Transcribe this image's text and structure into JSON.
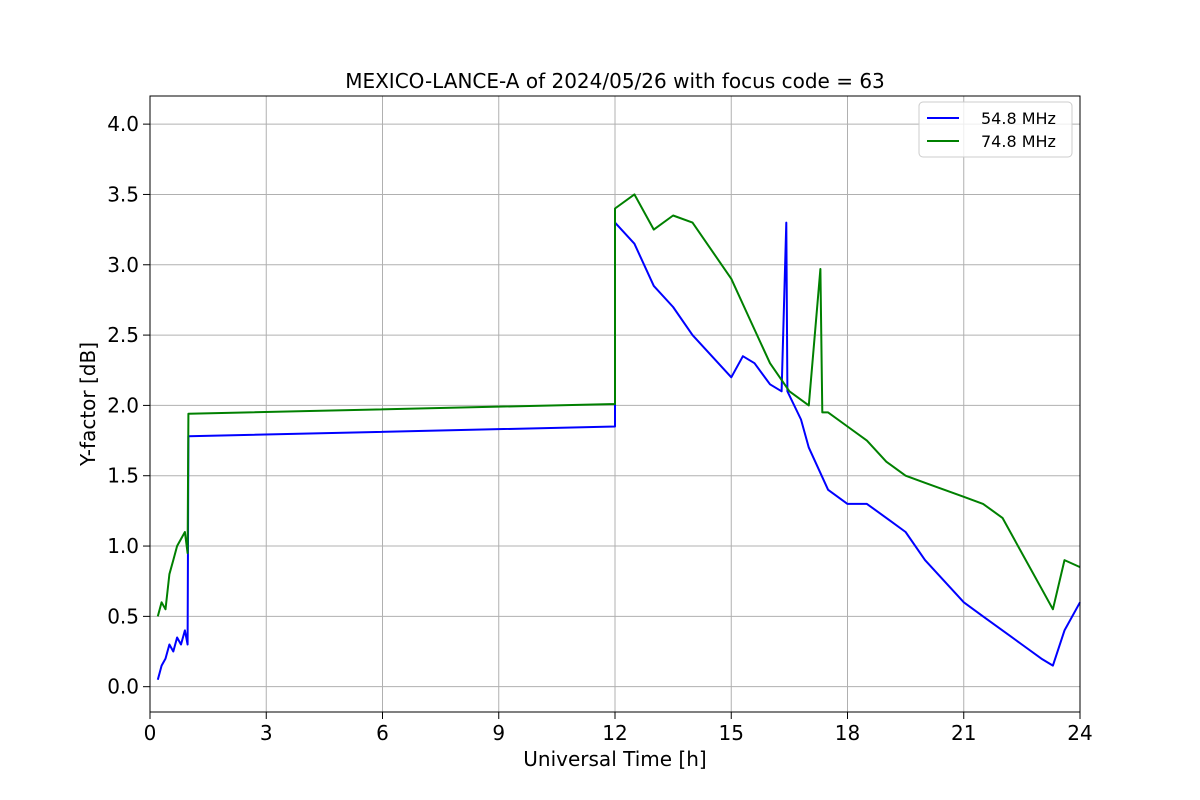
{
  "chart_data": {
    "type": "line",
    "title": "MEXICO-LANCE-A of 2024/05/26 with focus code = 63",
    "xlabel": "Universal Time [h]",
    "ylabel": "Y-factor [dB]",
    "xlim": [
      0,
      24
    ],
    "ylim": [
      -0.18,
      4.2
    ],
    "xticks": [
      0,
      3,
      6,
      9,
      12,
      15,
      18,
      21,
      24
    ],
    "xtick_labels": [
      "0",
      "3",
      "6",
      "9",
      "12",
      "15",
      "18",
      "21",
      "24"
    ],
    "yticks": [
      0.0,
      0.5,
      1.0,
      1.5,
      2.0,
      2.5,
      3.0,
      3.5,
      4.0
    ],
    "ytick_labels": [
      "0.0",
      "0.5",
      "1.0",
      "1.5",
      "2.0",
      "2.5",
      "3.0",
      "3.5",
      "4.0"
    ],
    "grid": true,
    "legend_position": "top-right",
    "series": [
      {
        "name": "54.8 MHz",
        "color": "#0000ff",
        "points": [
          [
            0.2,
            0.05
          ],
          [
            0.3,
            0.15
          ],
          [
            0.4,
            0.2
          ],
          [
            0.5,
            0.3
          ],
          [
            0.6,
            0.25
          ],
          [
            0.7,
            0.35
          ],
          [
            0.8,
            0.3
          ],
          [
            0.9,
            0.4
          ],
          [
            0.97,
            0.3
          ],
          [
            0.99,
            1.78
          ],
          [
            12.0,
            1.85
          ],
          [
            12.0,
            3.3
          ],
          [
            12.5,
            3.15
          ],
          [
            13.0,
            2.85
          ],
          [
            13.5,
            2.7
          ],
          [
            14.0,
            2.5
          ],
          [
            14.5,
            2.35
          ],
          [
            15.0,
            2.2
          ],
          [
            15.3,
            2.35
          ],
          [
            15.6,
            2.3
          ],
          [
            16.0,
            2.15
          ],
          [
            16.3,
            2.1
          ],
          [
            16.42,
            3.3
          ],
          [
            16.45,
            2.1
          ],
          [
            16.8,
            1.9
          ],
          [
            17.0,
            1.7
          ],
          [
            17.5,
            1.4
          ],
          [
            18.0,
            1.3
          ],
          [
            18.5,
            1.3
          ],
          [
            19.0,
            1.2
          ],
          [
            19.5,
            1.1
          ],
          [
            20.0,
            0.9
          ],
          [
            20.5,
            0.75
          ],
          [
            21.0,
            0.6
          ],
          [
            21.5,
            0.5
          ],
          [
            22.0,
            0.4
          ],
          [
            22.5,
            0.3
          ],
          [
            23.0,
            0.2
          ],
          [
            23.3,
            0.15
          ],
          [
            23.6,
            0.4
          ],
          [
            24.0,
            0.6
          ]
        ]
      },
      {
        "name": "74.8 MHz",
        "color": "#008000",
        "points": [
          [
            0.2,
            0.5
          ],
          [
            0.3,
            0.6
          ],
          [
            0.4,
            0.55
          ],
          [
            0.5,
            0.8
          ],
          [
            0.6,
            0.9
          ],
          [
            0.7,
            1.0
          ],
          [
            0.8,
            1.05
          ],
          [
            0.9,
            1.1
          ],
          [
            0.97,
            0.95
          ],
          [
            0.99,
            1.94
          ],
          [
            12.0,
            2.01
          ],
          [
            12.0,
            3.4
          ],
          [
            12.5,
            3.5
          ],
          [
            13.0,
            3.25
          ],
          [
            13.5,
            3.35
          ],
          [
            14.0,
            3.3
          ],
          [
            14.5,
            3.1
          ],
          [
            15.0,
            2.9
          ],
          [
            15.5,
            2.6
          ],
          [
            16.0,
            2.3
          ],
          [
            16.5,
            2.1
          ],
          [
            17.0,
            2.0
          ],
          [
            17.3,
            2.97
          ],
          [
            17.35,
            1.95
          ],
          [
            17.5,
            1.95
          ],
          [
            18.0,
            1.85
          ],
          [
            18.5,
            1.75
          ],
          [
            19.0,
            1.6
          ],
          [
            19.5,
            1.5
          ],
          [
            20.0,
            1.45
          ],
          [
            20.5,
            1.4
          ],
          [
            21.0,
            1.35
          ],
          [
            21.5,
            1.3
          ],
          [
            22.0,
            1.2
          ],
          [
            22.5,
            0.95
          ],
          [
            23.0,
            0.7
          ],
          [
            23.3,
            0.55
          ],
          [
            23.6,
            0.9
          ],
          [
            24.0,
            0.85
          ]
        ]
      }
    ]
  }
}
